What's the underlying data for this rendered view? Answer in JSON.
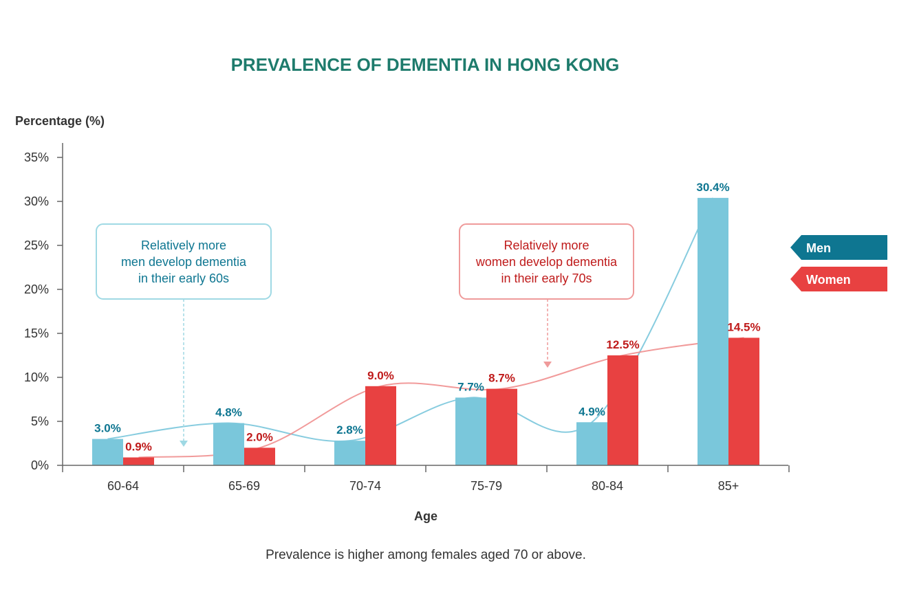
{
  "title": "PREVALENCE OF DEMENTIA IN HONG KONG",
  "footnote": "Prevalence is higher among females aged 70 or above.",
  "colors": {
    "title": "#1e7b6c",
    "men_bar": "#7ac7db",
    "women_bar": "#e84141",
    "men_legend": "#0e7691",
    "women_legend": "#e84141",
    "men_label": "#0e7691",
    "women_label": "#bf1a1a",
    "men_callout_border": "#9fd9e4",
    "women_callout_border": "#ef9a9a",
    "axis": "#666666"
  },
  "callouts": {
    "men": [
      "Relatively more",
      "men develop dementia",
      "in their early 60s"
    ],
    "women": [
      "Relatively more",
      "women develop dementia",
      "in their early 70s"
    ]
  },
  "chart_data": {
    "type": "bar",
    "title": "PREVALENCE OF DEMENTIA IN HONG KONG",
    "xlabel": "Age",
    "ylabel": "Percentage (%)",
    "categories": [
      "60-64",
      "65-69",
      "70-74",
      "75-79",
      "80-84",
      "85+"
    ],
    "yticks": [
      "0%",
      "5%",
      "10%",
      "15%",
      "20%",
      "25%",
      "30%",
      "35%"
    ],
    "ylim": [
      0,
      35
    ],
    "grid": false,
    "legend_position": "right",
    "series": [
      {
        "name": "Men",
        "values": [
          3.0,
          4.8,
          2.8,
          7.7,
          4.9,
          30.4
        ],
        "labels": [
          "3.0%",
          "4.8%",
          "2.8%",
          "7.7%",
          "4.9%",
          "30.4%"
        ]
      },
      {
        "name": "Women",
        "values": [
          0.9,
          2.0,
          9.0,
          8.7,
          12.5,
          14.5
        ],
        "labels": [
          "0.9%",
          "2.0%",
          "9.0%",
          "8.7%",
          "12.5%",
          "14.5%"
        ]
      }
    ]
  }
}
